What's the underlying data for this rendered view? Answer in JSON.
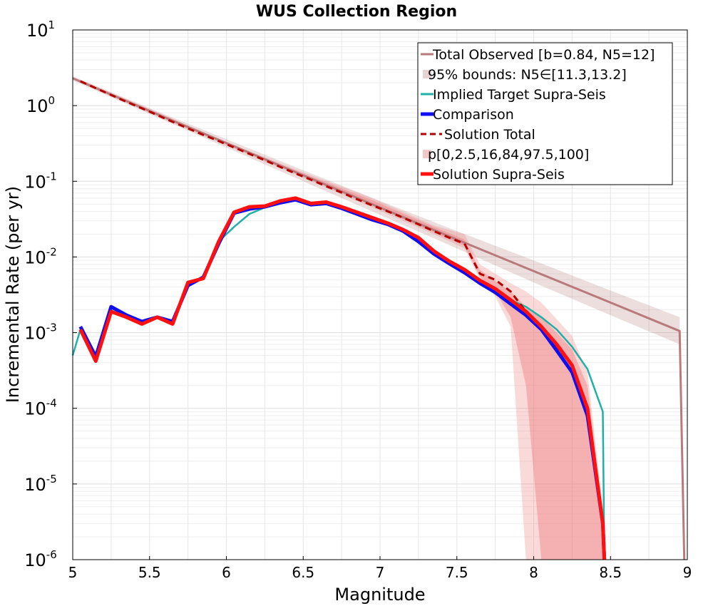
{
  "chart_data": {
    "type": "line",
    "title": "WUS Collection Region",
    "xlabel": "Magnitude",
    "ylabel": "Incremental Rate (per yr)",
    "xlim": [
      5,
      9
    ],
    "ylim": [
      1e-06,
      10
    ],
    "yscale": "log",
    "grid": true,
    "legend_placement": "top-right",
    "xticks": [
      "5",
      "5.5",
      "6",
      "6.5",
      "7",
      "7.5",
      "8",
      "8.5",
      "9"
    ],
    "yticks": [
      {
        "base": "10",
        "exp": "1"
      },
      {
        "base": "10",
        "exp": "0"
      },
      {
        "base": "10",
        "exp": "-1"
      },
      {
        "base": "10",
        "exp": "-2"
      },
      {
        "base": "10",
        "exp": "-3"
      },
      {
        "base": "10",
        "exp": "-4"
      },
      {
        "base": "10",
        "exp": "-5"
      },
      {
        "base": "10",
        "exp": "-6"
      }
    ],
    "legend": [
      {
        "label": "Total Observed [b=0.84, N5=12]",
        "style": "line",
        "color": "#b87a7a"
      },
      {
        "label": "95% bounds: N5∈[11.3,13.2]",
        "style": "band",
        "color": "#e8d2d2"
      },
      {
        "label": "Implied Target Supra-Seis",
        "style": "line",
        "color": "#20b0a8"
      },
      {
        "label": "Comparison",
        "style": "thick-line",
        "color": "#1010ee"
      },
      {
        "label": "Solution Total",
        "style": "dashed",
        "color": "#b00000"
      },
      {
        "label": "p[0,2.5,16,84,97.5,100]",
        "style": "band",
        "color": "#f5c8c8"
      },
      {
        "label": "Solution Supra-Seis",
        "style": "thick-line",
        "color": "#ff1010"
      }
    ],
    "series": [
      {
        "name": "Total Observed [b=0.84, N5=12]",
        "x": [
          5.0,
          5.55,
          6.0,
          6.5,
          7.0,
          7.5,
          8.0,
          8.5,
          8.95,
          8.98
        ],
        "y": [
          2.3,
          0.77,
          0.32,
          0.12,
          0.045,
          0.017,
          0.0065,
          0.0025,
          0.00105,
          1e-06
        ]
      },
      {
        "name": "95% bounds: N5∈[11.3,13.2]",
        "x": [
          5.0,
          5.55,
          6.0,
          6.5,
          7.0,
          7.5,
          8.0,
          8.5,
          8.95
        ],
        "lower": [
          2.15,
          0.7,
          0.28,
          0.1,
          0.036,
          0.013,
          0.0046,
          0.0017,
          0.0007
        ],
        "upper": [
          2.45,
          0.84,
          0.36,
          0.14,
          0.055,
          0.022,
          0.009,
          0.0036,
          0.0016
        ]
      },
      {
        "name": "Implied Target Supra-Seis",
        "x": [
          5.0,
          5.05,
          5.15,
          5.25,
          5.35,
          5.45,
          5.55,
          5.65,
          5.75,
          5.85,
          5.95,
          6.05,
          6.15,
          6.25,
          6.35,
          6.45,
          6.55,
          6.65,
          6.75,
          6.85,
          6.95,
          7.05,
          7.15,
          7.25,
          7.35,
          7.45,
          7.55,
          7.65,
          7.75,
          7.85,
          7.95,
          8.05,
          8.15,
          8.25,
          8.35,
          8.45,
          8.46
        ],
        "y": [
          0.0005,
          0.0011,
          0.00045,
          0.0021,
          0.0017,
          0.0014,
          0.0016,
          0.0014,
          0.0043,
          0.0055,
          0.016,
          0.025,
          0.037,
          0.045,
          0.052,
          0.057,
          0.05,
          0.051,
          0.045,
          0.038,
          0.032,
          0.027,
          0.022,
          0.017,
          0.011,
          0.0085,
          0.0065,
          0.0047,
          0.0036,
          0.0027,
          0.0022,
          0.0016,
          0.0011,
          0.00065,
          0.00033,
          9e-05,
          1e-06
        ]
      },
      {
        "name": "Comparison",
        "x": [
          5.05,
          5.15,
          5.25,
          5.35,
          5.45,
          5.55,
          5.65,
          5.75,
          5.85,
          5.95,
          6.05,
          6.15,
          6.25,
          6.35,
          6.45,
          6.55,
          6.65,
          6.75,
          6.85,
          6.95,
          7.05,
          7.15,
          7.25,
          7.35,
          7.45,
          7.55,
          7.65,
          7.75,
          7.85,
          7.95,
          8.05,
          8.15,
          8.25,
          8.35,
          8.45,
          8.46
        ],
        "y": [
          0.0012,
          0.00048,
          0.0022,
          0.0017,
          0.0014,
          0.0016,
          0.0014,
          0.0042,
          0.0054,
          0.015,
          0.038,
          0.043,
          0.046,
          0.052,
          0.057,
          0.049,
          0.051,
          0.044,
          0.037,
          0.031,
          0.027,
          0.022,
          0.016,
          0.011,
          0.0082,
          0.0062,
          0.0045,
          0.0034,
          0.0024,
          0.0017,
          0.0011,
          0.00058,
          0.0003,
          8e-05,
          3e-06,
          1e-06
        ]
      },
      {
        "name": "Solution Total",
        "x": [
          5.05,
          5.15,
          5.25,
          5.35,
          5.45,
          5.55,
          5.65,
          5.75,
          5.85,
          5.95,
          6.05,
          6.15,
          6.25,
          6.35,
          6.45,
          6.55,
          6.65,
          6.75,
          6.85,
          6.95,
          7.05,
          7.15,
          7.25,
          7.35,
          7.45,
          7.55,
          7.65,
          7.75,
          7.85,
          7.95,
          8.05,
          8.15,
          8.25,
          8.35,
          8.45,
          8.46
        ],
        "y": [
          2.1,
          1.7,
          1.38,
          1.12,
          0.92,
          0.75,
          0.61,
          0.5,
          0.41,
          0.34,
          0.28,
          0.23,
          0.19,
          0.155,
          0.127,
          0.105,
          0.086,
          0.071,
          0.058,
          0.048,
          0.04,
          0.033,
          0.027,
          0.022,
          0.018,
          0.015,
          0.006,
          0.005,
          0.0035,
          0.0019,
          0.0012,
          0.00066,
          0.00036,
          9e-05,
          3e-06,
          1e-06
        ]
      },
      {
        "name": "p[0,2.5,16,84,97.5,100]",
        "bands": [
          {
            "x": [
              5.05,
              5.55,
              6.05,
              6.55,
              6.95,
              7.35,
              7.55,
              7.65,
              7.75,
              7.85,
              7.95,
              8.05,
              8.15,
              8.25,
              8.35,
              8.45
            ],
            "lower": [
              2.0,
              0.72,
              0.27,
              0.1,
              0.045,
              0.02,
              0.013,
              0.005,
              0.003,
              0.0012,
              1e-06,
              1e-06,
              1e-06,
              1e-06,
              1e-06,
              1e-06
            ],
            "upper": [
              2.2,
              0.82,
              0.3,
              0.12,
              0.06,
              0.026,
              0.02,
              0.008,
              0.006,
              0.0045,
              0.0035,
              0.0025,
              0.0015,
              0.0009,
              0.0003,
              5e-06
            ]
          },
          {
            "x": [
              5.05,
              5.55,
              6.05,
              6.55,
              6.95,
              7.35,
              7.55,
              7.65,
              7.75,
              7.85,
              7.95,
              8.05,
              8.15,
              8.25,
              8.35,
              8.45
            ],
            "lower": [
              2.05,
              0.74,
              0.28,
              0.105,
              0.048,
              0.021,
              0.014,
              0.0055,
              0.0035,
              0.0016,
              0.0002,
              1e-06,
              1e-06,
              1e-06,
              1e-06,
              1e-06
            ],
            "upper": [
              2.15,
              0.8,
              0.29,
              0.115,
              0.056,
              0.025,
              0.017,
              0.0068,
              0.0048,
              0.0035,
              0.0022,
              0.0016,
              0.001,
              0.0006,
              0.0002,
              4e-06
            ]
          }
        ]
      },
      {
        "name": "Solution Supra-Seis",
        "x": [
          5.05,
          5.15,
          5.25,
          5.35,
          5.45,
          5.55,
          5.65,
          5.75,
          5.85,
          5.95,
          6.05,
          6.15,
          6.25,
          6.35,
          6.45,
          6.55,
          6.65,
          6.75,
          6.85,
          6.95,
          7.05,
          7.15,
          7.25,
          7.35,
          7.45,
          7.55,
          7.65,
          7.75,
          7.85,
          7.95,
          8.05,
          8.15,
          8.25,
          8.35,
          8.45,
          8.46
        ],
        "y": [
          0.0011,
          0.00042,
          0.0019,
          0.0016,
          0.0013,
          0.0016,
          0.0013,
          0.0046,
          0.0052,
          0.016,
          0.039,
          0.046,
          0.047,
          0.055,
          0.06,
          0.051,
          0.053,
          0.046,
          0.039,
          0.033,
          0.028,
          0.023,
          0.018,
          0.012,
          0.0088,
          0.0068,
          0.0049,
          0.0038,
          0.0027,
          0.0019,
          0.0012,
          0.0007,
          0.00037,
          0.0001,
          3e-06,
          1e-06
        ]
      }
    ]
  }
}
